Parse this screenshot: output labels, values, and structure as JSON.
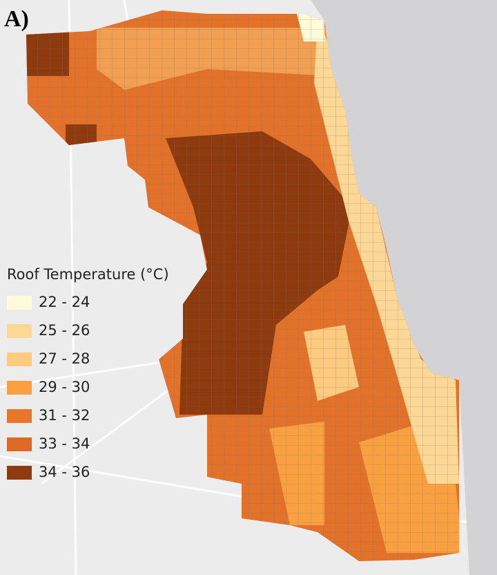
{
  "panel_label": "A)",
  "legend": {
    "title": "Roof Temperature (°C)",
    "items": [
      {
        "label": "22 - 24",
        "color": "#fefbd9"
      },
      {
        "label": "25 - 26",
        "color": "#fcd896"
      },
      {
        "label": "27 - 28",
        "color": "#fccb80"
      },
      {
        "label": "29 - 30",
        "color": "#f9a040"
      },
      {
        "label": "31 - 32",
        "color": "#e6772b"
      },
      {
        "label": "33 - 34",
        "color": "#dd6a24"
      },
      {
        "label": "34 - 36",
        "color": "#8c3a0e"
      }
    ]
  }
}
